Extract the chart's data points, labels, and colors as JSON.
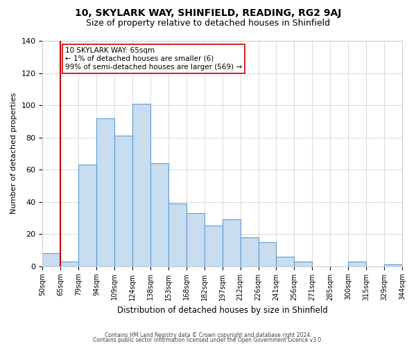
{
  "title1": "10, SKYLARK WAY, SHINFIELD, READING, RG2 9AJ",
  "title2": "Size of property relative to detached houses in Shinfield",
  "xlabel": "Distribution of detached houses by size in Shinfield",
  "ylabel": "Number of detached properties",
  "bin_labels": [
    "50sqm",
    "65sqm",
    "79sqm",
    "94sqm",
    "109sqm",
    "124sqm",
    "138sqm",
    "153sqm",
    "168sqm",
    "182sqm",
    "197sqm",
    "212sqm",
    "226sqm",
    "241sqm",
    "256sqm",
    "271sqm",
    "285sqm",
    "300sqm",
    "315sqm",
    "329sqm",
    "344sqm"
  ],
  "bar_values": [
    8,
    3,
    63,
    92,
    81,
    101,
    64,
    39,
    33,
    25,
    29,
    18,
    15,
    6,
    3,
    0,
    0,
    3,
    0,
    1
  ],
  "bar_color": "#c9ddf0",
  "bar_edge_color": "#5b9bd5",
  "vline_x_index": 1,
  "vline_color": "#cc0000",
  "annotation_line1": "10 SKYLARK WAY: 65sqm",
  "annotation_line2": "← 1% of detached houses are smaller (6)",
  "annotation_line3": "99% of semi-detached houses are larger (569) →",
  "annotation_box_color": "#ffffff",
  "annotation_box_edge": "#cc0000",
  "ylim": [
    0,
    140
  ],
  "yticks": [
    0,
    20,
    40,
    60,
    80,
    100,
    120,
    140
  ],
  "footer1": "Contains HM Land Registry data © Crown copyright and database right 2024.",
  "footer2": "Contains public sector information licensed under the Open Government Licence v3.0.",
  "bg_color": "#ffffff",
  "grid_color": "#cccccc"
}
